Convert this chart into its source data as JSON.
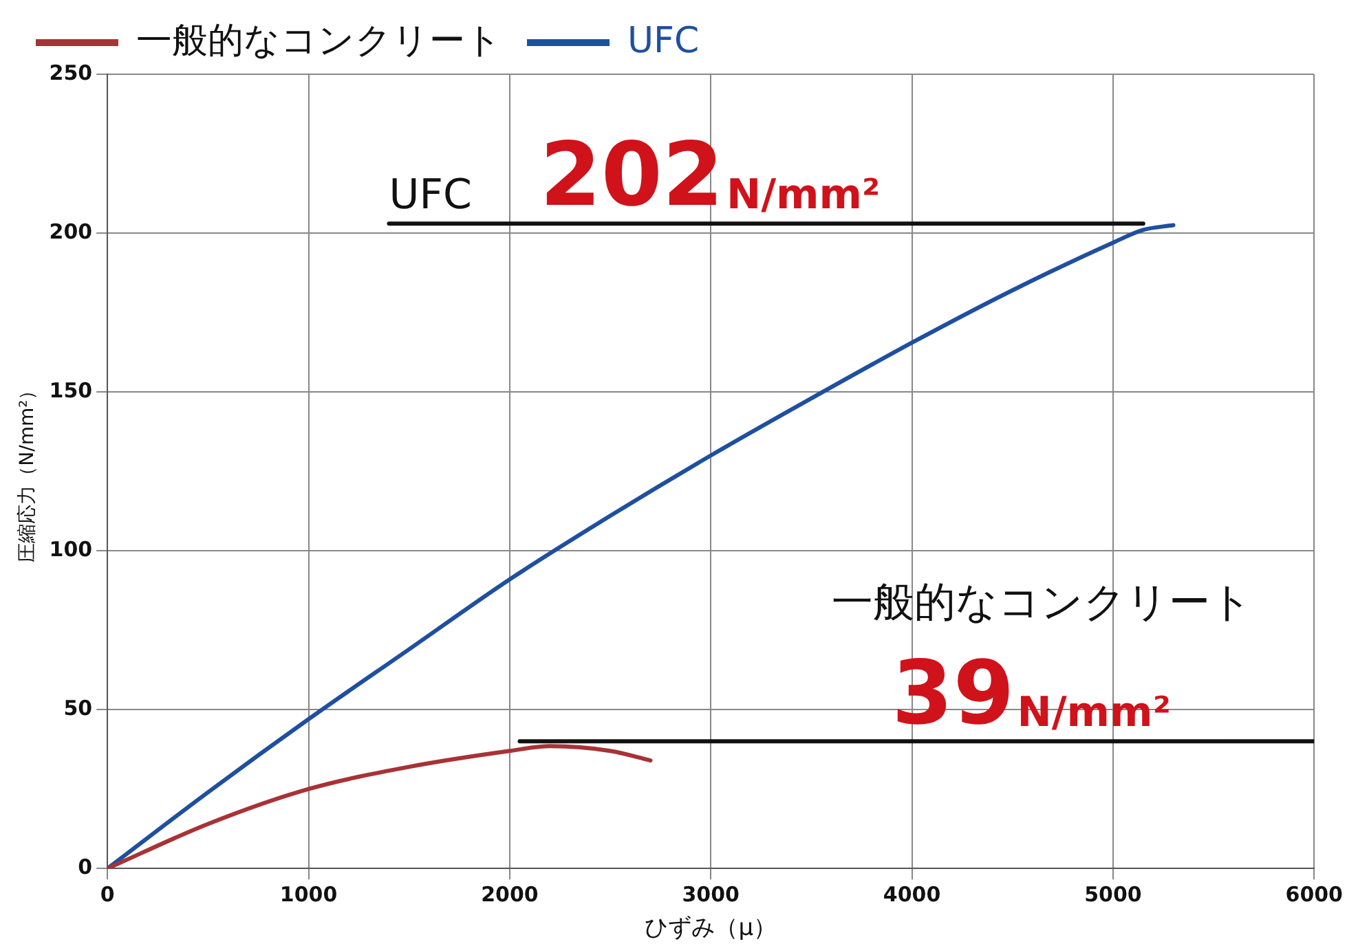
{
  "chart_data": {
    "type": "line",
    "xlabel": "ひずみ（μ）",
    "ylabel": "圧縮応力（N/mm²）",
    "xlim": [
      0,
      6000
    ],
    "xticks": [
      0,
      1000,
      2000,
      3000,
      4000,
      5000,
      6000
    ],
    "ylim": [
      0,
      250
    ],
    "yticks": [
      0,
      50,
      100,
      150,
      200,
      250
    ],
    "grid": true,
    "legend": "top left",
    "marker": "none",
    "line_style": "solid",
    "series": [
      {
        "name": "一般的なコンクリート",
        "color": "#a83236",
        "x": [
          0,
          500,
          1000,
          1500,
          2000,
          2200,
          2500,
          2700
        ],
        "values": [
          0,
          14,
          25,
          32,
          37,
          38.5,
          37,
          34
        ]
      },
      {
        "name": "UFC",
        "color": "#1f4f9f",
        "x": [
          0,
          500,
          1000,
          1500,
          2000,
          2500,
          3000,
          3500,
          4000,
          4500,
          5000,
          5150,
          5300
        ],
        "values": [
          0,
          24,
          47,
          69,
          91,
          111,
          130,
          148,
          165.5,
          182,
          197,
          201,
          202.5
        ]
      },
      {
        "color": "#111111",
        "x": [
          1400,
          5150
        ],
        "values": [
          203,
          203
        ]
      },
      {
        "color": "#111111",
        "x": [
          2050,
          6000
        ],
        "values": [
          40,
          40
        ]
      }
    ],
    "annotations": [
      {
        "text": "UFC",
        "x": 1400,
        "y": 203
      },
      {
        "text": "202N/mm²",
        "x": 2150,
        "y": 203
      },
      {
        "text": "一般的なコンクリート",
        "x": 3600,
        "y": 40
      },
      {
        "text": "39N/mm²",
        "x": 3900,
        "y": 40
      }
    ]
  }
}
